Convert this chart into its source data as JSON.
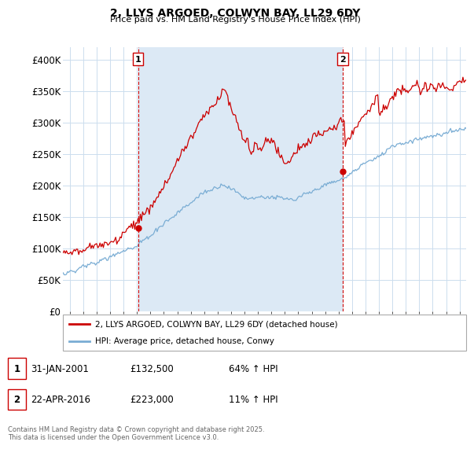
{
  "title": "2, LLYS ARGOED, COLWYN BAY, LL29 6DY",
  "subtitle": "Price paid vs. HM Land Registry's House Price Index (HPI)",
  "ylim": [
    0,
    420000
  ],
  "yticks": [
    0,
    50000,
    100000,
    150000,
    200000,
    250000,
    300000,
    350000,
    400000
  ],
  "ytick_labels": [
    "£0",
    "£50K",
    "£100K",
    "£150K",
    "£200K",
    "£250K",
    "£300K",
    "£350K",
    "£400K"
  ],
  "hpi_color": "#7aadd4",
  "price_color": "#cc0000",
  "shade_color": "#dce9f5",
  "sale1_date_x": 2001.08,
  "sale1_price": 132500,
  "sale2_date_x": 2016.31,
  "sale2_price": 223000,
  "legend_price_label": "2, LLYS ARGOED, COLWYN BAY, LL29 6DY (detached house)",
  "legend_hpi_label": "HPI: Average price, detached house, Conwy",
  "xmin": 1995.5,
  "xmax": 2025.5,
  "background_color": "#ffffff",
  "grid_color": "#ccddee",
  "footer": "Contains HM Land Registry data © Crown copyright and database right 2025.\nThis data is licensed under the Open Government Licence v3.0."
}
